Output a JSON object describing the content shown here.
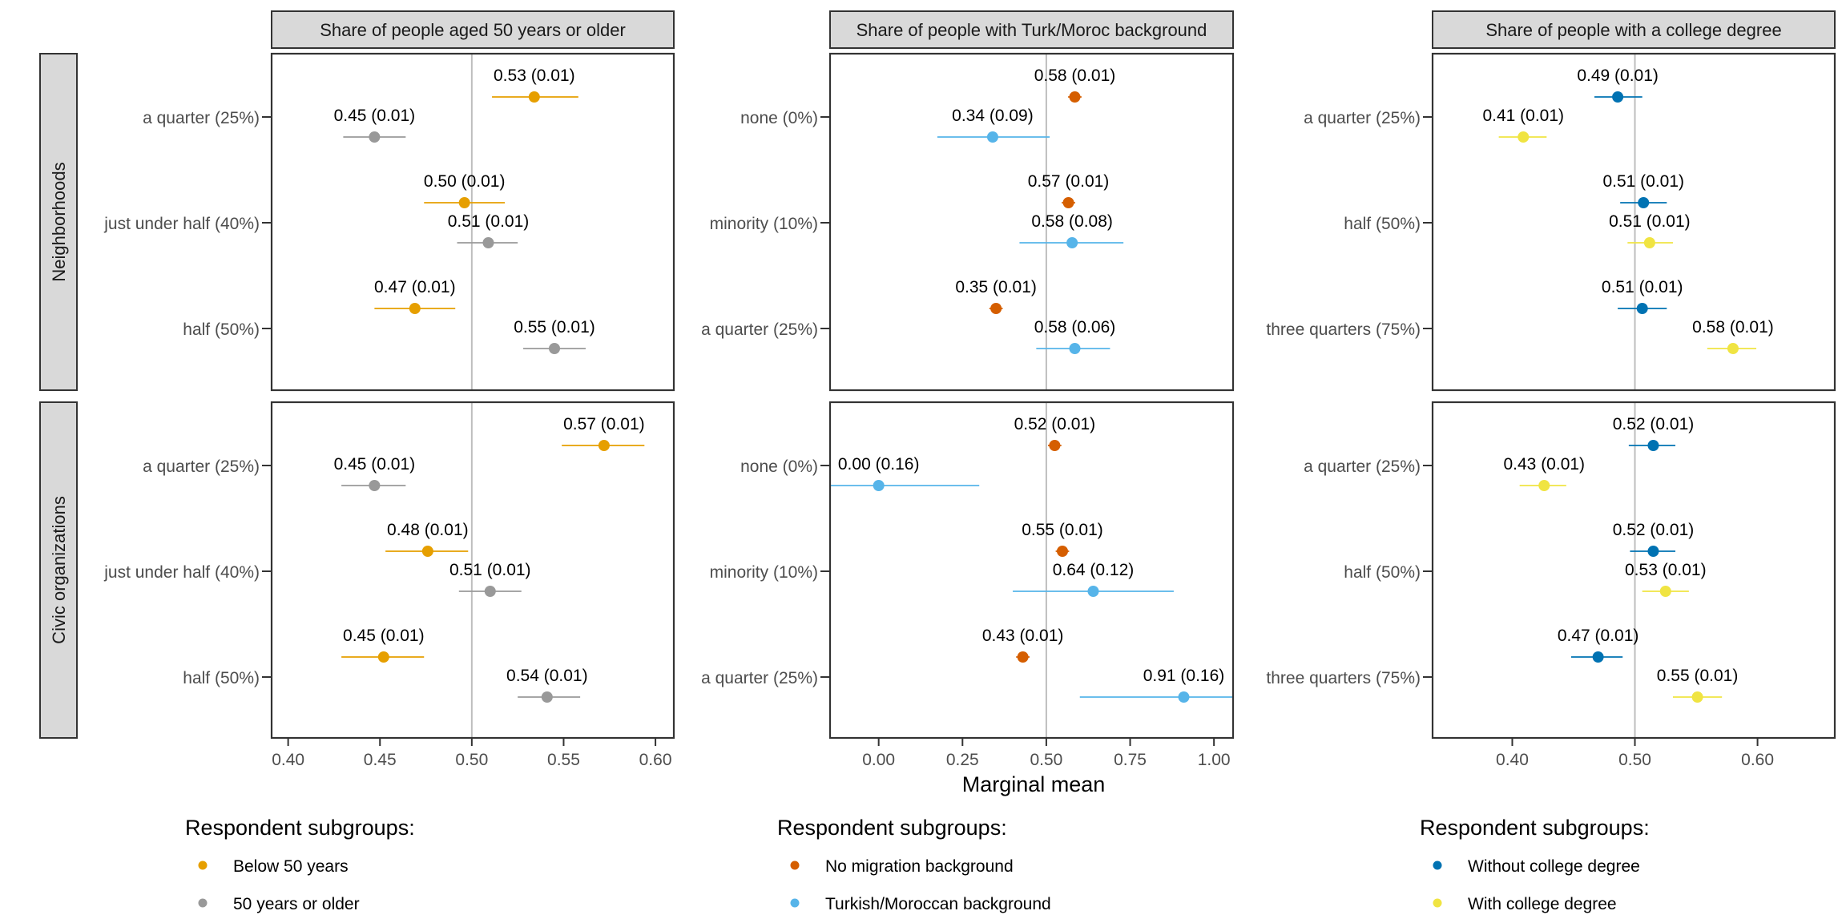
{
  "chart_data": {
    "type": "scatter",
    "subtype": "dot-and-whisker (faceted marginal means)",
    "xlabel": "Marginal mean",
    "reference_line": 0.5,
    "value_label_format": "mean (se)",
    "rows": [
      {
        "name": "Neighborhoods"
      },
      {
        "name": "Civic organizations"
      }
    ],
    "columns": [
      {
        "title": "Share of people aged 50 years or older",
        "xlim": [
          0.391,
          0.61
        ],
        "xticks": [
          0.4,
          0.45,
          0.5,
          0.55,
          0.6
        ],
        "xtick_labels": [
          "0.40",
          "0.45",
          "0.50",
          "0.55",
          "0.60"
        ],
        "categories": [
          "a quarter (25%)",
          "just under half (40%)",
          "half (50%)"
        ],
        "legend_title": "Respondent subgroups:",
        "series": [
          {
            "name": "Below 50 years",
            "color": "#E69F00"
          },
          {
            "name": "50 years or older",
            "color": "#999999"
          }
        ],
        "panels": [
          {
            "row": "Neighborhoods",
            "points": [
              {
                "category": 0,
                "series": 0,
                "mean": 0.534,
                "lo": 0.511,
                "hi": 0.558,
                "label": "0.53 (0.01)"
              },
              {
                "category": 0,
                "series": 1,
                "mean": 0.447,
                "lo": 0.43,
                "hi": 0.464,
                "label": "0.45 (0.01)"
              },
              {
                "category": 1,
                "series": 0,
                "mean": 0.496,
                "lo": 0.474,
                "hi": 0.518,
                "label": "0.50 (0.01)"
              },
              {
                "category": 1,
                "series": 1,
                "mean": 0.509,
                "lo": 0.492,
                "hi": 0.525,
                "label": "0.51 (0.01)"
              },
              {
                "category": 2,
                "series": 0,
                "mean": 0.469,
                "lo": 0.447,
                "hi": 0.491,
                "label": "0.47 (0.01)"
              },
              {
                "category": 2,
                "series": 1,
                "mean": 0.545,
                "lo": 0.528,
                "hi": 0.562,
                "label": "0.55 (0.01)"
              }
            ]
          },
          {
            "row": "Civic organizations",
            "points": [
              {
                "category": 0,
                "series": 0,
                "mean": 0.572,
                "lo": 0.549,
                "hi": 0.594,
                "label": "0.57 (0.01)"
              },
              {
                "category": 0,
                "series": 1,
                "mean": 0.447,
                "lo": 0.429,
                "hi": 0.464,
                "label": "0.45 (0.01)"
              },
              {
                "category": 1,
                "series": 0,
                "mean": 0.476,
                "lo": 0.453,
                "hi": 0.498,
                "label": "0.48 (0.01)"
              },
              {
                "category": 1,
                "series": 1,
                "mean": 0.51,
                "lo": 0.493,
                "hi": 0.527,
                "label": "0.51 (0.01)"
              },
              {
                "category": 2,
                "series": 0,
                "mean": 0.452,
                "lo": 0.429,
                "hi": 0.474,
                "label": "0.45 (0.01)"
              },
              {
                "category": 2,
                "series": 1,
                "mean": 0.541,
                "lo": 0.525,
                "hi": 0.559,
                "label": "0.54 (0.01)"
              }
            ]
          }
        ]
      },
      {
        "title": "Share of people with Turk/Moroc background",
        "xlim": [
          -0.145,
          1.057
        ],
        "xticks": [
          0.0,
          0.25,
          0.5,
          0.75,
          1.0
        ],
        "xtick_labels": [
          "0.00",
          "0.25",
          "0.50",
          "0.75",
          "1.00"
        ],
        "categories": [
          "none (0%)",
          "minority (10%)",
          "a quarter (25%)"
        ],
        "legend_title": "Respondent subgroups:",
        "series": [
          {
            "name": "No migration background",
            "color": "#D55E00"
          },
          {
            "name": "Turkish/Moroccan background",
            "color": "#56B4E9"
          }
        ],
        "panels": [
          {
            "row": "Neighborhoods",
            "points": [
              {
                "category": 0,
                "series": 0,
                "mean": 0.585,
                "lo": 0.565,
                "hi": 0.605,
                "label": "0.58 (0.01)"
              },
              {
                "category": 0,
                "series": 1,
                "mean": 0.34,
                "lo": 0.175,
                "hi": 0.51,
                "label": "0.34 (0.09)"
              },
              {
                "category": 1,
                "series": 0,
                "mean": 0.566,
                "lo": 0.546,
                "hi": 0.586,
                "label": "0.57 (0.01)"
              },
              {
                "category": 1,
                "series": 1,
                "mean": 0.577,
                "lo": 0.42,
                "hi": 0.73,
                "label": "0.58 (0.08)"
              },
              {
                "category": 2,
                "series": 0,
                "mean": 0.35,
                "lo": 0.33,
                "hi": 0.37,
                "label": "0.35 (0.01)"
              },
              {
                "category": 2,
                "series": 1,
                "mean": 0.585,
                "lo": 0.47,
                "hi": 0.69,
                "label": "0.58 (0.06)"
              }
            ]
          },
          {
            "row": "Civic organizations",
            "points": [
              {
                "category": 0,
                "series": 0,
                "mean": 0.525,
                "lo": 0.505,
                "hi": 0.545,
                "label": "0.52 (0.01)"
              },
              {
                "category": 0,
                "series": 1,
                "mean": 0.0,
                "lo": -0.31,
                "hi": 0.3,
                "label": "0.00 (0.16)"
              },
              {
                "category": 1,
                "series": 0,
                "mean": 0.548,
                "lo": 0.528,
                "hi": 0.568,
                "label": "0.55 (0.01)"
              },
              {
                "category": 1,
                "series": 1,
                "mean": 0.64,
                "lo": 0.4,
                "hi": 0.88,
                "label": "0.64 (0.12)"
              },
              {
                "category": 2,
                "series": 0,
                "mean": 0.43,
                "lo": 0.41,
                "hi": 0.45,
                "label": "0.43 (0.01)"
              },
              {
                "category": 2,
                "series": 1,
                "mean": 0.91,
                "lo": 0.6,
                "hi": 1.22,
                "label": "0.91 (0.16)"
              }
            ]
          }
        ]
      },
      {
        "title": "Share of people with a college degree",
        "xlim": [
          0.335,
          0.663
        ],
        "xticks": [
          0.4,
          0.5,
          0.6
        ],
        "xtick_labels": [
          "0.40",
          "0.50",
          "0.60"
        ],
        "categories": [
          "a quarter (25%)",
          "half (50%)",
          "three quarters (75%)"
        ],
        "legend_title": "Respondent subgroups:",
        "series": [
          {
            "name": "Without college degree",
            "color": "#0072B2"
          },
          {
            "name": "With college degree",
            "color": "#F0E442"
          }
        ],
        "panels": [
          {
            "row": "Neighborhoods",
            "points": [
              {
                "category": 0,
                "series": 0,
                "mean": 0.486,
                "lo": 0.467,
                "hi": 0.506,
                "label": "0.49 (0.01)"
              },
              {
                "category": 0,
                "series": 1,
                "mean": 0.409,
                "lo": 0.389,
                "hi": 0.428,
                "label": "0.41 (0.01)"
              },
              {
                "category": 1,
                "series": 0,
                "mean": 0.507,
                "lo": 0.488,
                "hi": 0.526,
                "label": "0.51 (0.01)"
              },
              {
                "category": 1,
                "series": 1,
                "mean": 0.512,
                "lo": 0.494,
                "hi": 0.531,
                "label": "0.51 (0.01)"
              },
              {
                "category": 2,
                "series": 0,
                "mean": 0.506,
                "lo": 0.486,
                "hi": 0.526,
                "label": "0.51 (0.01)"
              },
              {
                "category": 2,
                "series": 1,
                "mean": 0.58,
                "lo": 0.559,
                "hi": 0.599,
                "label": "0.58 (0.01)"
              }
            ]
          },
          {
            "row": "Civic organizations",
            "points": [
              {
                "category": 0,
                "series": 0,
                "mean": 0.515,
                "lo": 0.495,
                "hi": 0.533,
                "label": "0.52 (0.01)"
              },
              {
                "category": 0,
                "series": 1,
                "mean": 0.426,
                "lo": 0.406,
                "hi": 0.444,
                "label": "0.43 (0.01)"
              },
              {
                "category": 1,
                "series": 0,
                "mean": 0.515,
                "lo": 0.496,
                "hi": 0.533,
                "label": "0.52 (0.01)"
              },
              {
                "category": 1,
                "series": 1,
                "mean": 0.525,
                "lo": 0.506,
                "hi": 0.544,
                "label": "0.53 (0.01)"
              },
              {
                "category": 2,
                "series": 0,
                "mean": 0.47,
                "lo": 0.448,
                "hi": 0.49,
                "label": "0.47 (0.01)"
              },
              {
                "category": 2,
                "series": 1,
                "mean": 0.551,
                "lo": 0.531,
                "hi": 0.571,
                "label": "0.55 (0.01)"
              }
            ]
          }
        ]
      }
    ]
  },
  "colors": {
    "strip_fill": "#D9D9D9",
    "panel_border": "#333333",
    "reference_line": "#BEBEBE",
    "tick_text": "#4D4D4D"
  }
}
